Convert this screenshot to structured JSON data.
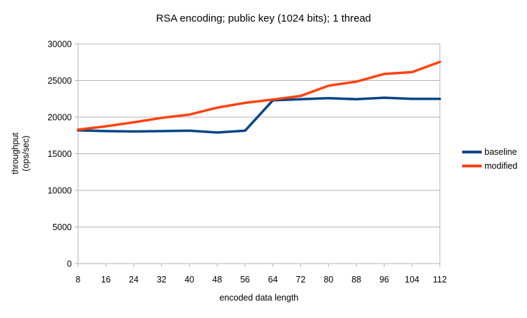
{
  "chart_data": {
    "type": "line",
    "title": "RSA encoding; public key (1024 bits); 1 thread",
    "xlabel": "encoded data length",
    "ylabel": "throughput (ops/sec)",
    "ylabel_lines": [
      "throughput",
      "(ops/sec)"
    ],
    "x": [
      8,
      16,
      24,
      32,
      40,
      48,
      56,
      64,
      72,
      80,
      88,
      96,
      104,
      112
    ],
    "xticks": [
      8,
      16,
      24,
      32,
      40,
      48,
      56,
      64,
      72,
      80,
      88,
      96,
      104,
      112
    ],
    "yticks": [
      0,
      5000,
      10000,
      15000,
      20000,
      25000,
      30000
    ],
    "xlim": [
      8,
      112
    ],
    "ylim": [
      0,
      30000
    ],
    "grid": "horizontal",
    "legend_position": "right",
    "series": [
      {
        "name": "baseline",
        "color": "#004586",
        "values": [
          18200,
          18100,
          18050,
          18100,
          18150,
          17900,
          18150,
          22300,
          22450,
          22600,
          22450,
          22650,
          22500,
          22500
        ]
      },
      {
        "name": "modified",
        "color": "#ff420e",
        "values": [
          18300,
          18750,
          19300,
          19900,
          20350,
          21300,
          21950,
          22400,
          22900,
          24300,
          24850,
          25900,
          26150,
          27550
        ]
      }
    ]
  },
  "colors": {
    "grid": "#b3b3b3",
    "text": "#000000",
    "background": "#ffffff"
  }
}
